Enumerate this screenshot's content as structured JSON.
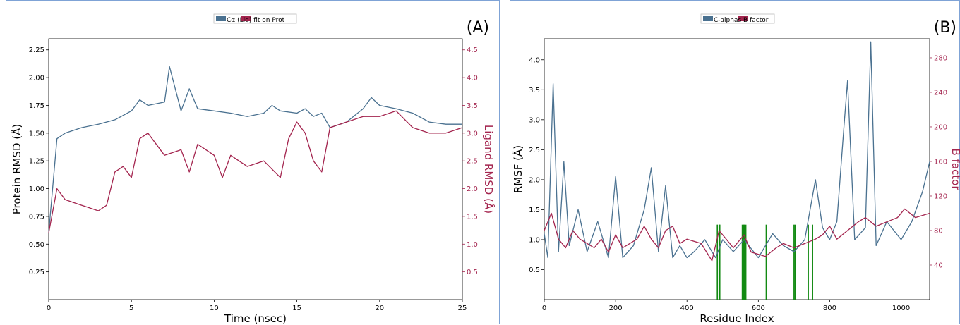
{
  "colors": {
    "blue": "#4a7190",
    "red": "#a3244e",
    "green": "#128a12"
  },
  "panelA": {
    "label": "(A)",
    "legend": "Cα (Lig) fit on Prot",
    "xlabel": "Time (nsec)",
    "ylabel_left": "Protein RMSD (Å)",
    "ylabel_right": "Ligand RMSD (Å)"
  },
  "panelB": {
    "label": "(B)",
    "legend": "C-alphas B factor",
    "xlabel": "Residue Index",
    "ylabel_left": "RMSF (Å)",
    "ylabel_right": "B factor"
  },
  "chart_data": [
    {
      "type": "line",
      "xlim": [
        0,
        25
      ],
      "ylim_left": [
        0,
        2.35
      ],
      "ylim_right": [
        0,
        4.7
      ],
      "x_ticks": [
        0,
        5,
        10,
        15,
        20,
        25
      ],
      "y_ticks_left": [
        "0.25",
        "0.50",
        "0.75",
        "1.00",
        "1.25",
        "1.50",
        "1.75",
        "2.00",
        "2.25"
      ],
      "y_ticks_right": [
        "0.5",
        "1.0",
        "1.5",
        "2.0",
        "2.5",
        "3.0",
        "3.5",
        "4.0",
        "4.5"
      ],
      "series": [
        {
          "name": "Cα",
          "axis": "left",
          "color": "#4a7190",
          "points": [
            [
              0,
              0.6
            ],
            [
              0.5,
              1.45
            ],
            [
              1,
              1.5
            ],
            [
              2,
              1.55
            ],
            [
              3,
              1.58
            ],
            [
              4,
              1.62
            ],
            [
              5,
              1.7
            ],
            [
              5.5,
              1.8
            ],
            [
              6,
              1.75
            ],
            [
              7,
              1.78
            ],
            [
              7.3,
              2.1
            ],
            [
              8,
              1.7
            ],
            [
              8.5,
              1.9
            ],
            [
              9,
              1.72
            ],
            [
              10,
              1.7
            ],
            [
              11,
              1.68
            ],
            [
              12,
              1.65
            ],
            [
              13,
              1.68
            ],
            [
              13.5,
              1.75
            ],
            [
              14,
              1.7
            ],
            [
              15,
              1.68
            ],
            [
              15.5,
              1.72
            ],
            [
              16,
              1.65
            ],
            [
              16.5,
              1.68
            ],
            [
              17,
              1.55
            ],
            [
              18,
              1.6
            ],
            [
              19,
              1.72
            ],
            [
              19.5,
              1.82
            ],
            [
              20,
              1.75
            ],
            [
              21,
              1.72
            ],
            [
              22,
              1.68
            ],
            [
              23,
              1.6
            ],
            [
              24,
              1.58
            ],
            [
              25,
              1.58
            ]
          ]
        },
        {
          "name": "(Lig) fit on Prot",
          "axis": "right",
          "color": "#a3244e",
          "points": [
            [
              0,
              1.2
            ],
            [
              0.5,
              2.0
            ],
            [
              1,
              1.8
            ],
            [
              2,
              1.7
            ],
            [
              3,
              1.6
            ],
            [
              3.5,
              1.7
            ],
            [
              4,
              2.3
            ],
            [
              4.5,
              2.4
            ],
            [
              5,
              2.2
            ],
            [
              5.5,
              2.9
            ],
            [
              6,
              3.0
            ],
            [
              7,
              2.6
            ],
            [
              8,
              2.7
            ],
            [
              8.5,
              2.3
            ],
            [
              9,
              2.8
            ],
            [
              10,
              2.6
            ],
            [
              10.5,
              2.2
            ],
            [
              11,
              2.6
            ],
            [
              12,
              2.4
            ],
            [
              13,
              2.5
            ],
            [
              14,
              2.2
            ],
            [
              14.5,
              2.9
            ],
            [
              15,
              3.2
            ],
            [
              15.5,
              3.0
            ],
            [
              16,
              2.5
            ],
            [
              16.5,
              2.3
            ],
            [
              17,
              3.1
            ],
            [
              18,
              3.2
            ],
            [
              19,
              3.3
            ],
            [
              20,
              3.3
            ],
            [
              21,
              3.4
            ],
            [
              22,
              3.1
            ],
            [
              23,
              3.0
            ],
            [
              24,
              3.0
            ],
            [
              25,
              3.1
            ]
          ]
        }
      ]
    },
    {
      "type": "line",
      "xlim": [
        0,
        1080
      ],
      "ylim_left": [
        0,
        4.35
      ],
      "ylim_right": [
        0,
        302
      ],
      "x_ticks": [
        0,
        200,
        400,
        600,
        800,
        1000
      ],
      "y_ticks_left": [
        "0.5",
        "1.0",
        "1.5",
        "2.0",
        "2.5",
        "3.0",
        "3.5",
        "4.0"
      ],
      "y_ticks_right": [
        "40",
        "80",
        "120",
        "160",
        "200",
        "240",
        "280"
      ],
      "series": [
        {
          "name": "C-alphas",
          "axis": "left",
          "color": "#4a7190",
          "points": [
            [
              0,
              1.1
            ],
            [
              10,
              0.7
            ],
            [
              25,
              3.6
            ],
            [
              40,
              0.8
            ],
            [
              55,
              2.3
            ],
            [
              70,
              0.9
            ],
            [
              95,
              1.5
            ],
            [
              120,
              0.8
            ],
            [
              150,
              1.3
            ],
            [
              180,
              0.7
            ],
            [
              200,
              2.05
            ],
            [
              220,
              0.7
            ],
            [
              250,
              0.9
            ],
            [
              280,
              1.5
            ],
            [
              300,
              2.2
            ],
            [
              320,
              0.8
            ],
            [
              340,
              1.9
            ],
            [
              360,
              0.7
            ],
            [
              380,
              0.9
            ],
            [
              400,
              0.7
            ],
            [
              420,
              0.8
            ],
            [
              450,
              1.0
            ],
            [
              480,
              0.7
            ],
            [
              500,
              1.0
            ],
            [
              530,
              0.8
            ],
            [
              560,
              1.0
            ],
            [
              600,
              0.7
            ],
            [
              640,
              1.1
            ],
            [
              670,
              0.9
            ],
            [
              700,
              0.8
            ],
            [
              730,
              1.0
            ],
            [
              760,
              2.0
            ],
            [
              780,
              1.2
            ],
            [
              800,
              1.0
            ],
            [
              820,
              1.3
            ],
            [
              840,
              2.9
            ],
            [
              850,
              3.65
            ],
            [
              870,
              1.0
            ],
            [
              900,
              1.2
            ],
            [
              915,
              4.3
            ],
            [
              930,
              0.9
            ],
            [
              960,
              1.3
            ],
            [
              1000,
              1.0
            ],
            [
              1030,
              1.3
            ],
            [
              1060,
              1.8
            ],
            [
              1080,
              2.3
            ]
          ]
        },
        {
          "name": "B factor",
          "axis": "right",
          "color": "#a3244e",
          "points": [
            [
              0,
              80
            ],
            [
              20,
              100
            ],
            [
              40,
              70
            ],
            [
              60,
              60
            ],
            [
              80,
              80
            ],
            [
              100,
              70
            ],
            [
              140,
              60
            ],
            [
              160,
              70
            ],
            [
              180,
              55
            ],
            [
              200,
              75
            ],
            [
              220,
              60
            ],
            [
              260,
              70
            ],
            [
              280,
              85
            ],
            [
              300,
              70
            ],
            [
              320,
              60
            ],
            [
              340,
              80
            ],
            [
              360,
              85
            ],
            [
              380,
              65
            ],
            [
              400,
              70
            ],
            [
              440,
              65
            ],
            [
              470,
              45
            ],
            [
              490,
              80
            ],
            [
              510,
              70
            ],
            [
              530,
              60
            ],
            [
              560,
              75
            ],
            [
              580,
              55
            ],
            [
              620,
              50
            ],
            [
              650,
              60
            ],
            [
              670,
              65
            ],
            [
              700,
              60
            ],
            [
              730,
              65
            ],
            [
              760,
              70
            ],
            [
              780,
              75
            ],
            [
              800,
              85
            ],
            [
              820,
              70
            ],
            [
              850,
              80
            ],
            [
              880,
              90
            ],
            [
              900,
              95
            ],
            [
              930,
              85
            ],
            [
              960,
              90
            ],
            [
              990,
              95
            ],
            [
              1010,
              105
            ],
            [
              1040,
              95
            ],
            [
              1080,
              100
            ]
          ]
        }
      ],
      "contact_residues": [
        485,
        490,
        492,
        555,
        558,
        560,
        562,
        565,
        622,
        700,
        703,
        740,
        752
      ]
    }
  ]
}
